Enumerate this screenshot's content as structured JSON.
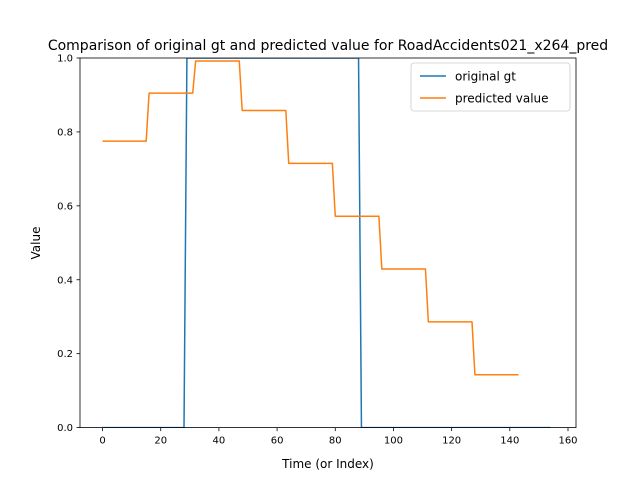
{
  "chart_data": {
    "type": "line",
    "title": "Comparison of original gt and predicted value for RoadAccidents021_x264_pred",
    "xlabel": "Time (or Index)",
    "ylabel": "Value",
    "xlim": [
      -7.75,
      162.75
    ],
    "ylim": [
      0.0,
      1.0
    ],
    "xticks": [
      0,
      20,
      40,
      60,
      80,
      100,
      120,
      140,
      160
    ],
    "xtick_labels": [
      "0",
      "20",
      "40",
      "60",
      "80",
      "100",
      "120",
      "140",
      "160"
    ],
    "yticks": [
      0.0,
      0.2,
      0.4,
      0.6,
      0.8,
      1.0
    ],
    "ytick_labels": [
      "0.0",
      "0.2",
      "0.4",
      "0.6",
      "0.8",
      "1.0"
    ],
    "grid": false,
    "legend": "top-right",
    "series": [
      {
        "name": "original gt",
        "color": "#1f77b4",
        "x": [
          0,
          28,
          29,
          88,
          89,
          154
        ],
        "y": [
          0,
          0,
          1,
          1,
          0,
          0
        ]
      },
      {
        "name": "predicted value",
        "color": "#ff7f0e",
        "x": [
          0,
          15,
          16,
          31,
          32,
          47,
          48,
          63,
          64,
          79,
          80,
          95,
          96,
          111,
          112,
          127,
          128,
          143
        ],
        "y": [
          0.775,
          0.775,
          0.905,
          0.905,
          0.992,
          0.992,
          0.858,
          0.858,
          0.715,
          0.715,
          0.572,
          0.572,
          0.429,
          0.429,
          0.286,
          0.286,
          0.143,
          0.143
        ]
      }
    ]
  }
}
